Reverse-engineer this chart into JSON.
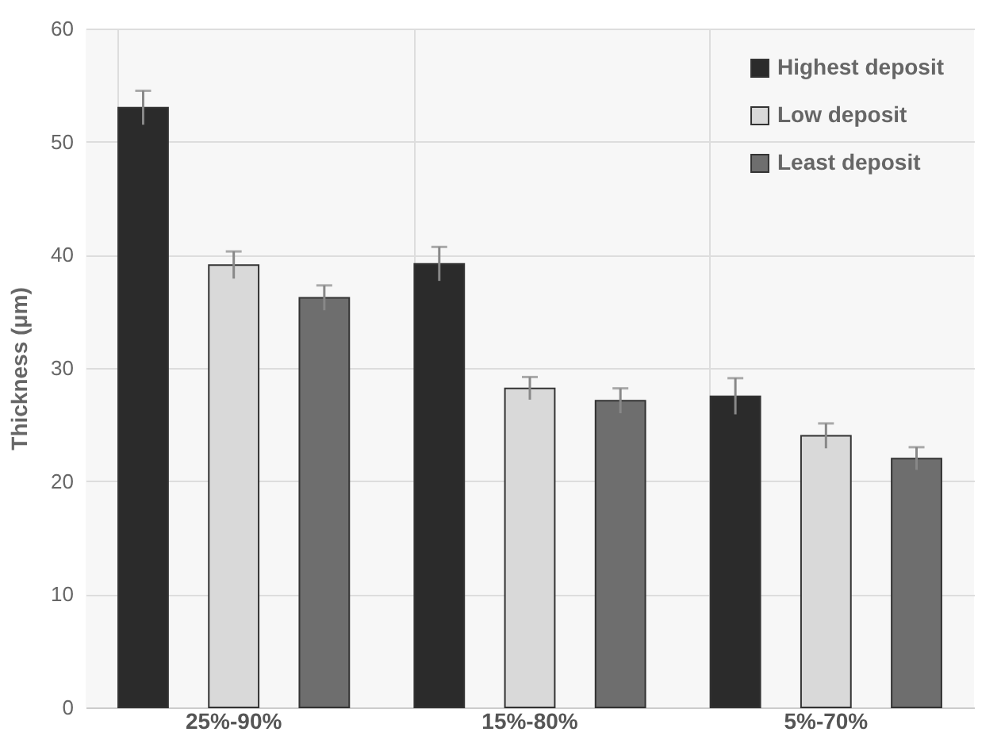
{
  "chart_data": {
    "type": "bar",
    "ylabel": "Thickness (μm)",
    "categories": [
      "25%-90%",
      "15%-80%",
      "5%-70%"
    ],
    "series": [
      {
        "name": "Highest deposit",
        "color": "#2b2b2b",
        "values": [
          53,
          39.2,
          27.5
        ],
        "errors": [
          1.5,
          1.5,
          1.6
        ]
      },
      {
        "name": "Low deposit",
        "color": "#d9d9d9",
        "values": [
          39.1,
          28.2,
          24
        ],
        "errors": [
          1.2,
          1,
          1.1
        ]
      },
      {
        "name": "Least deposit",
        "color": "#6e6e6e",
        "values": [
          36.2,
          27.1,
          22
        ],
        "errors": [
          1.1,
          1.1,
          1
        ]
      }
    ],
    "ylim": [
      0,
      60
    ],
    "yticks": [
      0,
      10,
      20,
      30,
      40,
      50,
      60
    ],
    "grid": true,
    "legend": "top right"
  }
}
